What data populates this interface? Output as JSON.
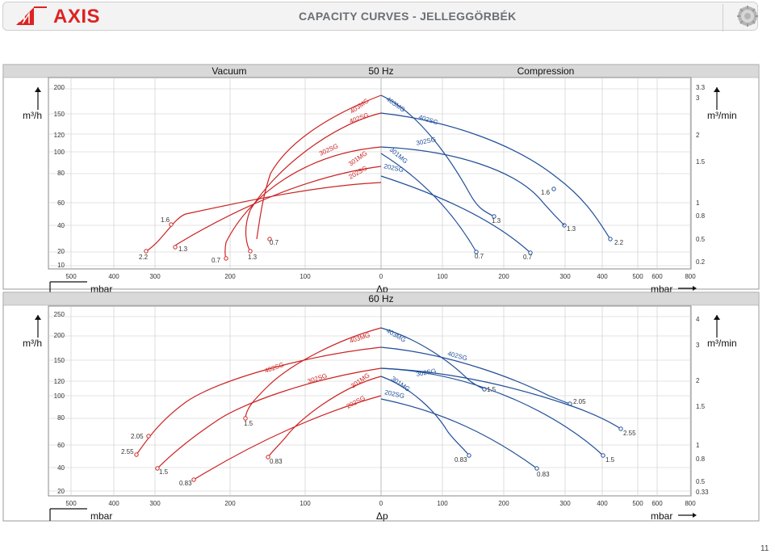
{
  "header": {
    "brand": "AXIS",
    "title": "CAPACITY CURVES - JELLEGGÖRBÉK",
    "page_number": "11",
    "icons": [
      "axis-logo-triangle-icon",
      "gear-icon"
    ]
  },
  "colors": {
    "vacuum": "#cc2222",
    "compression": "#1f4e99",
    "grid": "#c8c8c8",
    "band": "#d9d9d9"
  },
  "panel_50": {
    "band_left": "Vacuum",
    "band_center": "50 Hz",
    "band_right": "Compression",
    "left_unit": "m³/h",
    "right_unit": "m³/min",
    "bottom_left_unit": "mbar",
    "bottom_center": "Δp",
    "bottom_right_unit": "mbar",
    "left_ticks": [
      "200",
      "150",
      "120",
      "100",
      "80",
      "60",
      "40",
      "20",
      "10"
    ],
    "right_ticks": [
      "3.3",
      "3",
      "2",
      "1.5",
      "1",
      "0.8",
      "0.5",
      "0.2"
    ],
    "x_ticks_vac": [
      "500",
      "400",
      "300",
      "200",
      "100",
      "0"
    ],
    "x_ticks_comp": [
      "100",
      "200",
      "300",
      "400",
      "500",
      "600",
      "800"
    ]
  },
  "panel_60": {
    "band_center": "60 Hz",
    "left_unit": "m³/h",
    "right_unit": "m³/min",
    "bottom_left_unit": "mbar",
    "bottom_center": "Δp",
    "bottom_right_unit": "mbar",
    "left_ticks": [
      "250",
      "200",
      "150",
      "120",
      "100",
      "80",
      "60",
      "40",
      "20"
    ],
    "right_ticks": [
      "4",
      "3",
      "2",
      "1.5",
      "1",
      "0.8",
      "0.5",
      "0.33"
    ],
    "x_ticks_vac": [
      "500",
      "400",
      "300",
      "200",
      "100",
      "0"
    ],
    "x_ticks_comp": [
      "100",
      "200",
      "300",
      "400",
      "500",
      "600",
      "800"
    ]
  },
  "chart_data": [
    {
      "type": "line",
      "title": "50 Hz",
      "xlabel": "Δp (mbar)",
      "ylabel": "m³/h",
      "series": [
        {
          "name": "403MG",
          "side": "vacuum",
          "labels": [
            {
              "text": "0.7"
            }
          ]
        },
        {
          "name": "402SG",
          "side": "vacuum",
          "labels": [
            {
              "text": "1.3"
            }
          ]
        },
        {
          "name": "302SG",
          "side": "vacuum",
          "labels": [
            {
              "text": "0.7"
            }
          ]
        },
        {
          "name": "301MG",
          "side": "vacuum",
          "labels": [
            {
              "text": "1.3"
            }
          ]
        },
        {
          "name": "202SG",
          "side": "vacuum",
          "labels": [
            {
              "text": "1.6"
            },
            {
              "text": "2.2"
            }
          ]
        },
        {
          "name": "403MG",
          "side": "compression",
          "labels": [
            {
              "text": "1.3"
            }
          ]
        },
        {
          "name": "402SG",
          "side": "compression",
          "labels": [
            {
              "text": "1.6"
            },
            {
              "text": "1.3"
            }
          ]
        },
        {
          "name": "302SG",
          "side": "compression",
          "labels": [
            {
              "text": "2.2"
            }
          ]
        },
        {
          "name": "301MG",
          "side": "compression",
          "labels": [
            {
              "text": "0.7"
            }
          ]
        },
        {
          "name": "202SG",
          "side": "compression",
          "labels": [
            {
              "text": "0.7"
            }
          ]
        }
      ]
    },
    {
      "type": "line",
      "title": "60 Hz",
      "xlabel": "Δp (mbar)",
      "ylabel": "m³/h",
      "series": [
        {
          "name": "403MG",
          "side": "vacuum",
          "labels": [
            {
              "text": "1.5"
            }
          ]
        },
        {
          "name": "402SG",
          "side": "vacuum",
          "labels": [
            {
              "text": "2.05"
            },
            {
              "text": "2.55"
            }
          ]
        },
        {
          "name": "302SG",
          "side": "vacuum",
          "labels": [
            {
              "text": "1.5"
            }
          ]
        },
        {
          "name": "301MG",
          "side": "vacuum",
          "labels": [
            {
              "text": "0.83"
            }
          ]
        },
        {
          "name": "202SG",
          "side": "vacuum",
          "labels": [
            {
              "text": "0.83"
            }
          ]
        },
        {
          "name": "403MG",
          "side": "compression",
          "labels": [
            {
              "text": "1.5"
            }
          ]
        },
        {
          "name": "402SG",
          "side": "compression",
          "labels": [
            {
              "text": "2.05"
            }
          ]
        },
        {
          "name": "302SG",
          "side": "compression",
          "labels": [
            {
              "text": "2.55"
            },
            {
              "text": "1.5"
            }
          ]
        },
        {
          "name": "301MG",
          "side": "compression",
          "labels": [
            {
              "text": "0.83"
            }
          ]
        },
        {
          "name": "202SG",
          "side": "compression",
          "labels": [
            {
              "text": "0.83"
            }
          ]
        }
      ]
    }
  ]
}
